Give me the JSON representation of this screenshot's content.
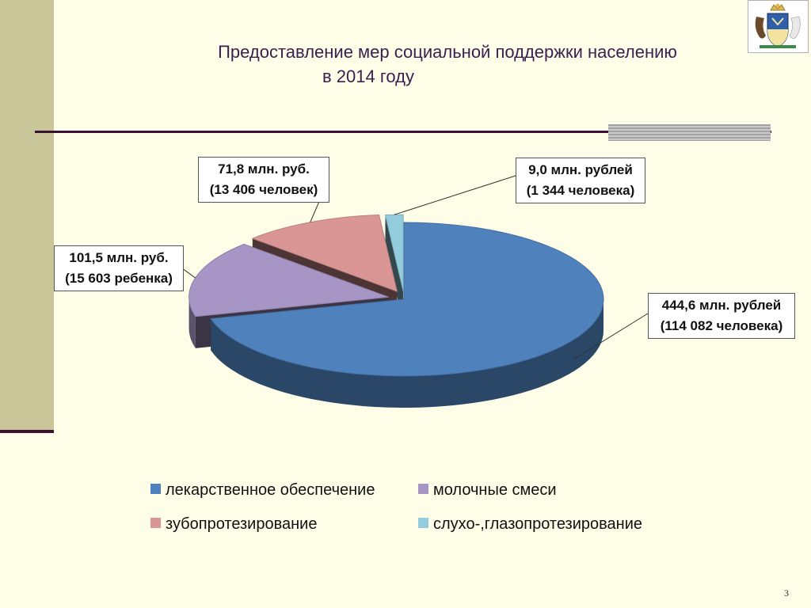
{
  "slide": {
    "title_line1": "Предоставление мер социальной поддержки населению",
    "title_line2": "в 2014 году",
    "page_number": "3"
  },
  "colors": {
    "background": "#fefee8",
    "left_band": "#c9c79a",
    "accent_line": "#3a1032",
    "title_text": "#3a1f4f"
  },
  "chart_data": {
    "type": "pie",
    "title": "",
    "unit": "млн. руб.",
    "series": [
      {
        "name": "лекарственное обеспечение",
        "value": 444.6,
        "label_line1": "444,6 млн. рублей",
        "label_line2": "(114 082 человека)",
        "color": "#4f81bd"
      },
      {
        "name": "молочные смеси",
        "value": 101.5,
        "label_line1": "101,5 млн. руб.",
        "label_line2": "(15 603 ребенка)",
        "color": "#a695c5"
      },
      {
        "name": "зубопротезирование",
        "value": 71.8,
        "label_line1": "71,8 млн. руб.",
        "label_line2": "(13 406 человек)",
        "color": "#d99694"
      },
      {
        "name": "слухо-,глазопротезирование",
        "value": 9.0,
        "label_line1": "9,0 млн. рублей",
        "label_line2": "(1 344 человека)",
        "color": "#93cddd"
      }
    ],
    "legend_position": "bottom"
  }
}
